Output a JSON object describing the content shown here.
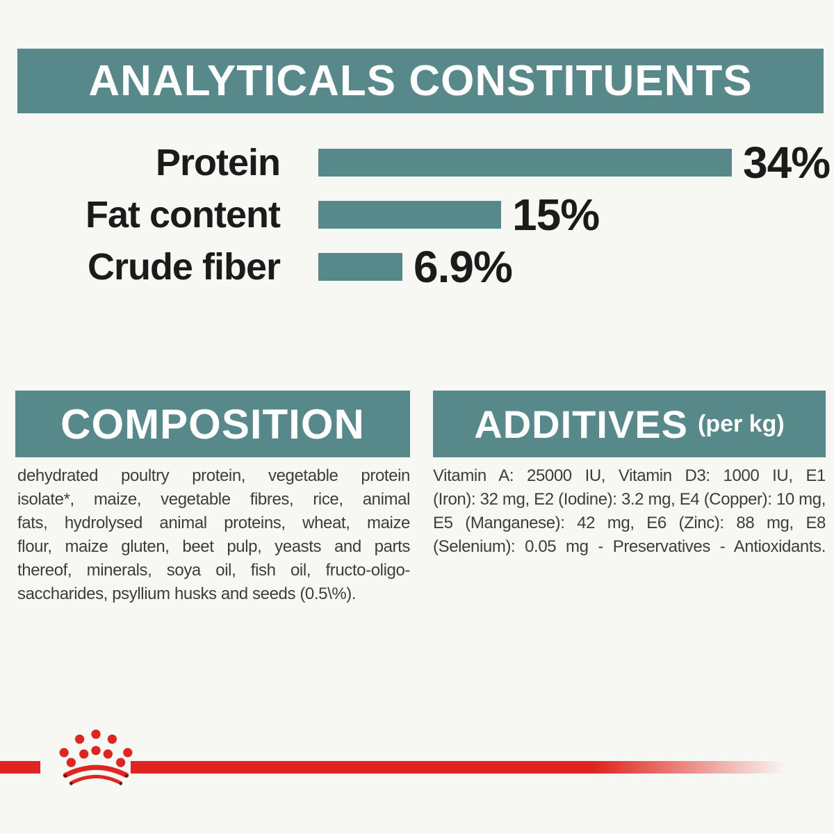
{
  "theme": {
    "teal": "#57898b",
    "red": "#e0241f",
    "page_bg": "#f7f7f3",
    "heading_text": "#ffffff",
    "label_text": "#1b1b1b",
    "body_text": "#3d3d3d",
    "crown_tip": "#55150d"
  },
  "header": {
    "title": "ANALYTICALS CONSTITUENTS"
  },
  "chart_data": {
    "type": "bar",
    "orientation": "horizontal",
    "title": "ANALYTICALS CONSTITUENTS",
    "categories": [
      "Protein",
      "Fat content",
      "Crude fiber"
    ],
    "values": [
      34,
      15,
      6.9
    ],
    "value_labels": [
      "34%",
      "15%",
      "6.9%"
    ],
    "unit": "%",
    "xlim": [
      0,
      34
    ],
    "bar_color": "#57898b",
    "grid": false,
    "legend": false
  },
  "composition": {
    "heading": "COMPOSITION",
    "lines": [
      "dehydrated poultry protein, vegetable protein",
      "isolate*, maize, vegetable fibres, rice, animal",
      "fats, hydrolysed animal proteins, wheat, maize",
      "flour, maize gluten, beet pulp, yeasts and parts",
      "thereof, minerals, soya oil, fish oil, fructo-oligo-",
      "saccharides, psyllium husks and seeds (0.5\\%)."
    ]
  },
  "additives": {
    "heading": "ADDITIVES",
    "heading_suffix": "(per kg)",
    "lines": [
      "Vitamin A: 25000 IU, Vitamin D3: 1000 IU, E1",
      "(Iron): 32 mg, E2 (Iodine): 3.2 mg, E4 (Copper): 10 mg,",
      "E5 (Manganese): 42 mg, E6 (Zinc): 88 mg, E8",
      "(Selenium): 0.05 mg - Preservatives - Antioxidants."
    ]
  },
  "footer": {
    "logo": "royal-canin-crown"
  }
}
